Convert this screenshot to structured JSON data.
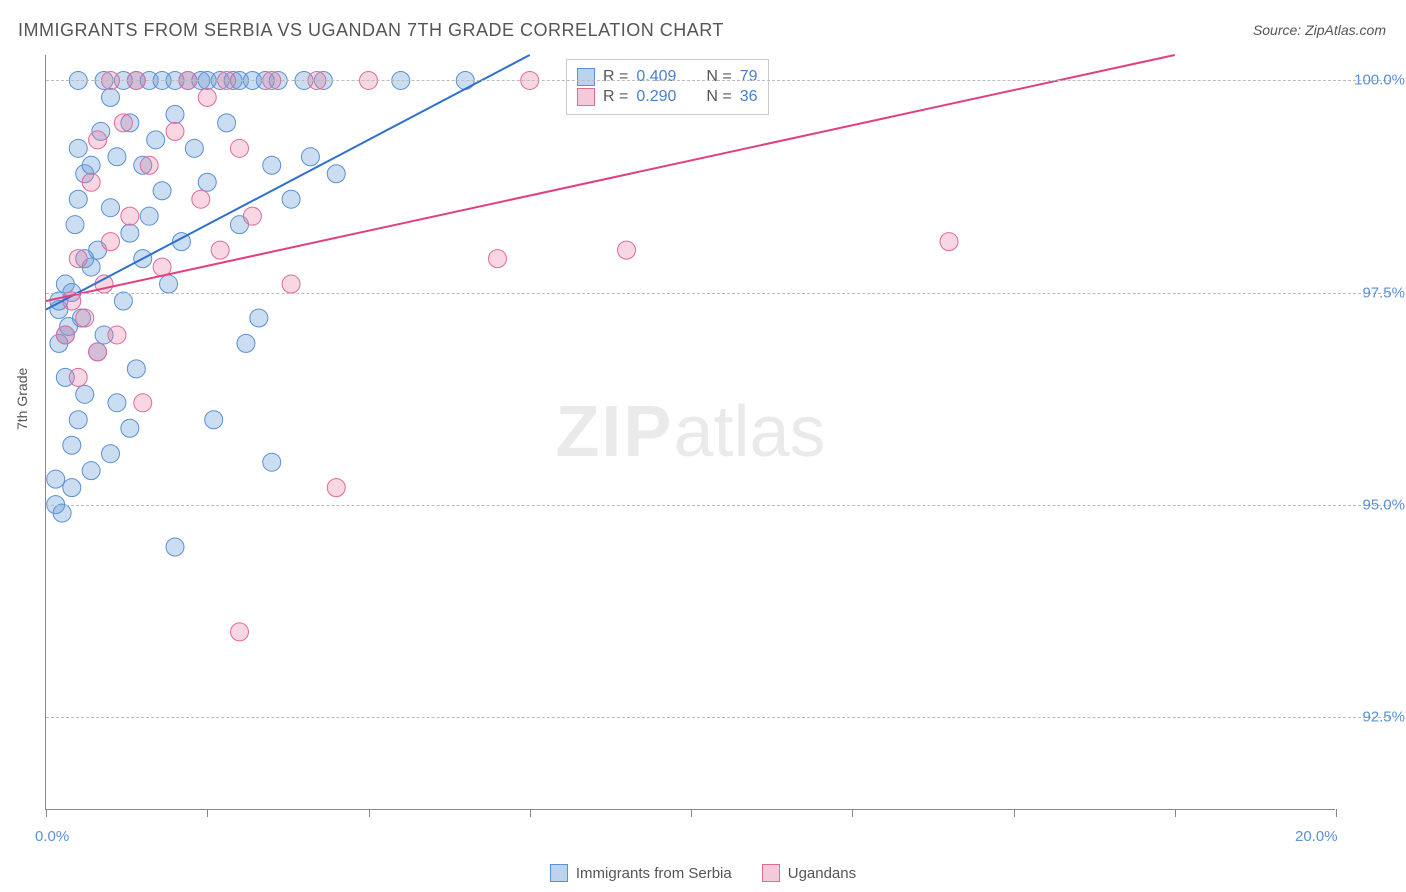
{
  "title": "IMMIGRANTS FROM SERBIA VS UGANDAN 7TH GRADE CORRELATION CHART",
  "source": "Source: ZipAtlas.com",
  "ylabel": "7th Grade",
  "watermark_bold": "ZIP",
  "watermark_rest": "atlas",
  "chart": {
    "type": "scatter",
    "xlim": [
      0,
      20
    ],
    "ylim": [
      91.4,
      100.3
    ],
    "x_ticks": [
      0,
      2.5,
      5,
      7.5,
      10,
      12.5,
      15,
      17.5,
      20
    ],
    "x_tick_labels": {
      "0": "0.0%",
      "20": "20.0%"
    },
    "y_ticks": [
      92.5,
      95.0,
      97.5,
      100.0
    ],
    "y_tick_labels": [
      "92.5%",
      "95.0%",
      "97.5%",
      "100.0%"
    ],
    "background_color": "#ffffff",
    "grid_color": "#bbbbbb",
    "axis_color": "#888888",
    "tick_label_color": "#5b8fd6",
    "series": [
      {
        "key": "serbia",
        "label": "Immigrants from Serbia",
        "color_fill": "rgba(107,158,216,0.35)",
        "color_stroke": "#5b8fd6",
        "marker_radius": 9,
        "trend": {
          "x1": 0,
          "y1": 97.3,
          "x2": 7.5,
          "y2": 100.3,
          "color": "#2f6fd0",
          "width": 2
        },
        "R": "0.409",
        "N": "79",
        "points": [
          [
            0.15,
            95.3
          ],
          [
            0.15,
            95.0
          ],
          [
            0.2,
            97.3
          ],
          [
            0.2,
            97.4
          ],
          [
            0.25,
            94.9
          ],
          [
            0.3,
            96.5
          ],
          [
            0.3,
            97.0
          ],
          [
            0.3,
            97.6
          ],
          [
            0.35,
            97.1
          ],
          [
            0.4,
            95.7
          ],
          [
            0.4,
            97.5
          ],
          [
            0.45,
            98.3
          ],
          [
            0.5,
            96.0
          ],
          [
            0.5,
            98.6
          ],
          [
            0.5,
            99.2
          ],
          [
            0.5,
            100.0
          ],
          [
            0.55,
            97.2
          ],
          [
            0.6,
            96.3
          ],
          [
            0.6,
            98.9
          ],
          [
            0.7,
            95.4
          ],
          [
            0.7,
            97.8
          ],
          [
            0.7,
            99.0
          ],
          [
            0.8,
            96.8
          ],
          [
            0.8,
            98.0
          ],
          [
            0.85,
            99.4
          ],
          [
            0.9,
            97.0
          ],
          [
            0.9,
            100.0
          ],
          [
            1.0,
            95.6
          ],
          [
            1.0,
            98.5
          ],
          [
            1.0,
            99.8
          ],
          [
            1.1,
            96.2
          ],
          [
            1.1,
            99.1
          ],
          [
            1.2,
            97.4
          ],
          [
            1.2,
            100.0
          ],
          [
            1.3,
            98.2
          ],
          [
            1.3,
            99.5
          ],
          [
            1.4,
            96.6
          ],
          [
            1.4,
            100.0
          ],
          [
            1.5,
            97.9
          ],
          [
            1.5,
            99.0
          ],
          [
            1.6,
            98.4
          ],
          [
            1.6,
            100.0
          ],
          [
            1.7,
            99.3
          ],
          [
            1.8,
            98.7
          ],
          [
            1.8,
            100.0
          ],
          [
            1.9,
            97.6
          ],
          [
            2.0,
            99.6
          ],
          [
            2.0,
            100.0
          ],
          [
            2.1,
            98.1
          ],
          [
            2.2,
            100.0
          ],
          [
            2.3,
            99.2
          ],
          [
            2.4,
            100.0
          ],
          [
            2.5,
            98.8
          ],
          [
            2.5,
            100.0
          ],
          [
            2.6,
            96.0
          ],
          [
            2.7,
            100.0
          ],
          [
            2.8,
            99.5
          ],
          [
            2.9,
            100.0
          ],
          [
            3.0,
            98.3
          ],
          [
            3.0,
            100.0
          ],
          [
            3.1,
            96.9
          ],
          [
            3.2,
            100.0
          ],
          [
            3.3,
            97.2
          ],
          [
            3.4,
            100.0
          ],
          [
            3.5,
            99.0
          ],
          [
            3.5,
            95.5
          ],
          [
            3.6,
            100.0
          ],
          [
            3.8,
            98.6
          ],
          [
            4.0,
            100.0
          ],
          [
            4.1,
            99.1
          ],
          [
            4.3,
            100.0
          ],
          [
            4.5,
            98.9
          ],
          [
            2.0,
            94.5
          ],
          [
            0.4,
            95.2
          ],
          [
            1.3,
            95.9
          ],
          [
            0.2,
            96.9
          ],
          [
            0.6,
            97.9
          ],
          [
            5.5,
            100.0
          ],
          [
            6.5,
            100.0
          ]
        ]
      },
      {
        "key": "uganda",
        "label": "Ugandans",
        "color_fill": "rgba(232,120,160,0.30)",
        "color_stroke": "#e06a98",
        "marker_radius": 9,
        "trend": {
          "x1": 0,
          "y1": 97.4,
          "x2": 17.5,
          "y2": 100.3,
          "color": "#e04080",
          "width": 2
        },
        "R": "0.290",
        "N": "36",
        "points": [
          [
            0.3,
            97.0
          ],
          [
            0.4,
            97.4
          ],
          [
            0.5,
            96.5
          ],
          [
            0.5,
            97.9
          ],
          [
            0.6,
            97.2
          ],
          [
            0.7,
            98.8
          ],
          [
            0.8,
            96.8
          ],
          [
            0.8,
            99.3
          ],
          [
            0.9,
            97.6
          ],
          [
            1.0,
            98.1
          ],
          [
            1.0,
            100.0
          ],
          [
            1.1,
            97.0
          ],
          [
            1.2,
            99.5
          ],
          [
            1.3,
            98.4
          ],
          [
            1.4,
            100.0
          ],
          [
            1.5,
            96.2
          ],
          [
            1.6,
            99.0
          ],
          [
            1.8,
            97.8
          ],
          [
            2.0,
            99.4
          ],
          [
            2.2,
            100.0
          ],
          [
            2.4,
            98.6
          ],
          [
            2.5,
            99.8
          ],
          [
            2.7,
            98.0
          ],
          [
            2.8,
            100.0
          ],
          [
            3.0,
            99.2
          ],
          [
            3.2,
            98.4
          ],
          [
            3.5,
            100.0
          ],
          [
            3.8,
            97.6
          ],
          [
            4.2,
            100.0
          ],
          [
            4.5,
            95.2
          ],
          [
            5.0,
            100.0
          ],
          [
            7.0,
            97.9
          ],
          [
            7.5,
            100.0
          ],
          [
            9.0,
            98.0
          ],
          [
            14.0,
            98.1
          ],
          [
            3.0,
            93.5
          ]
        ]
      }
    ]
  },
  "legend_top": {
    "rows": [
      {
        "swatch_fill": "rgba(107,158,216,0.45)",
        "swatch_stroke": "#5b8fd6",
        "R_label": "R =",
        "R": "0.409",
        "N_label": "N =",
        "N": "79"
      },
      {
        "swatch_fill": "rgba(232,120,160,0.40)",
        "swatch_stroke": "#e06a98",
        "R_label": "R =",
        "R": "0.290",
        "N_label": "N =",
        "N": "36"
      }
    ]
  },
  "legend_bottom": {
    "items": [
      {
        "swatch_fill": "rgba(107,158,216,0.45)",
        "swatch_stroke": "#5b8fd6",
        "label": "Immigrants from Serbia"
      },
      {
        "swatch_fill": "rgba(232,120,160,0.40)",
        "swatch_stroke": "#e06a98",
        "label": "Ugandans"
      }
    ]
  }
}
